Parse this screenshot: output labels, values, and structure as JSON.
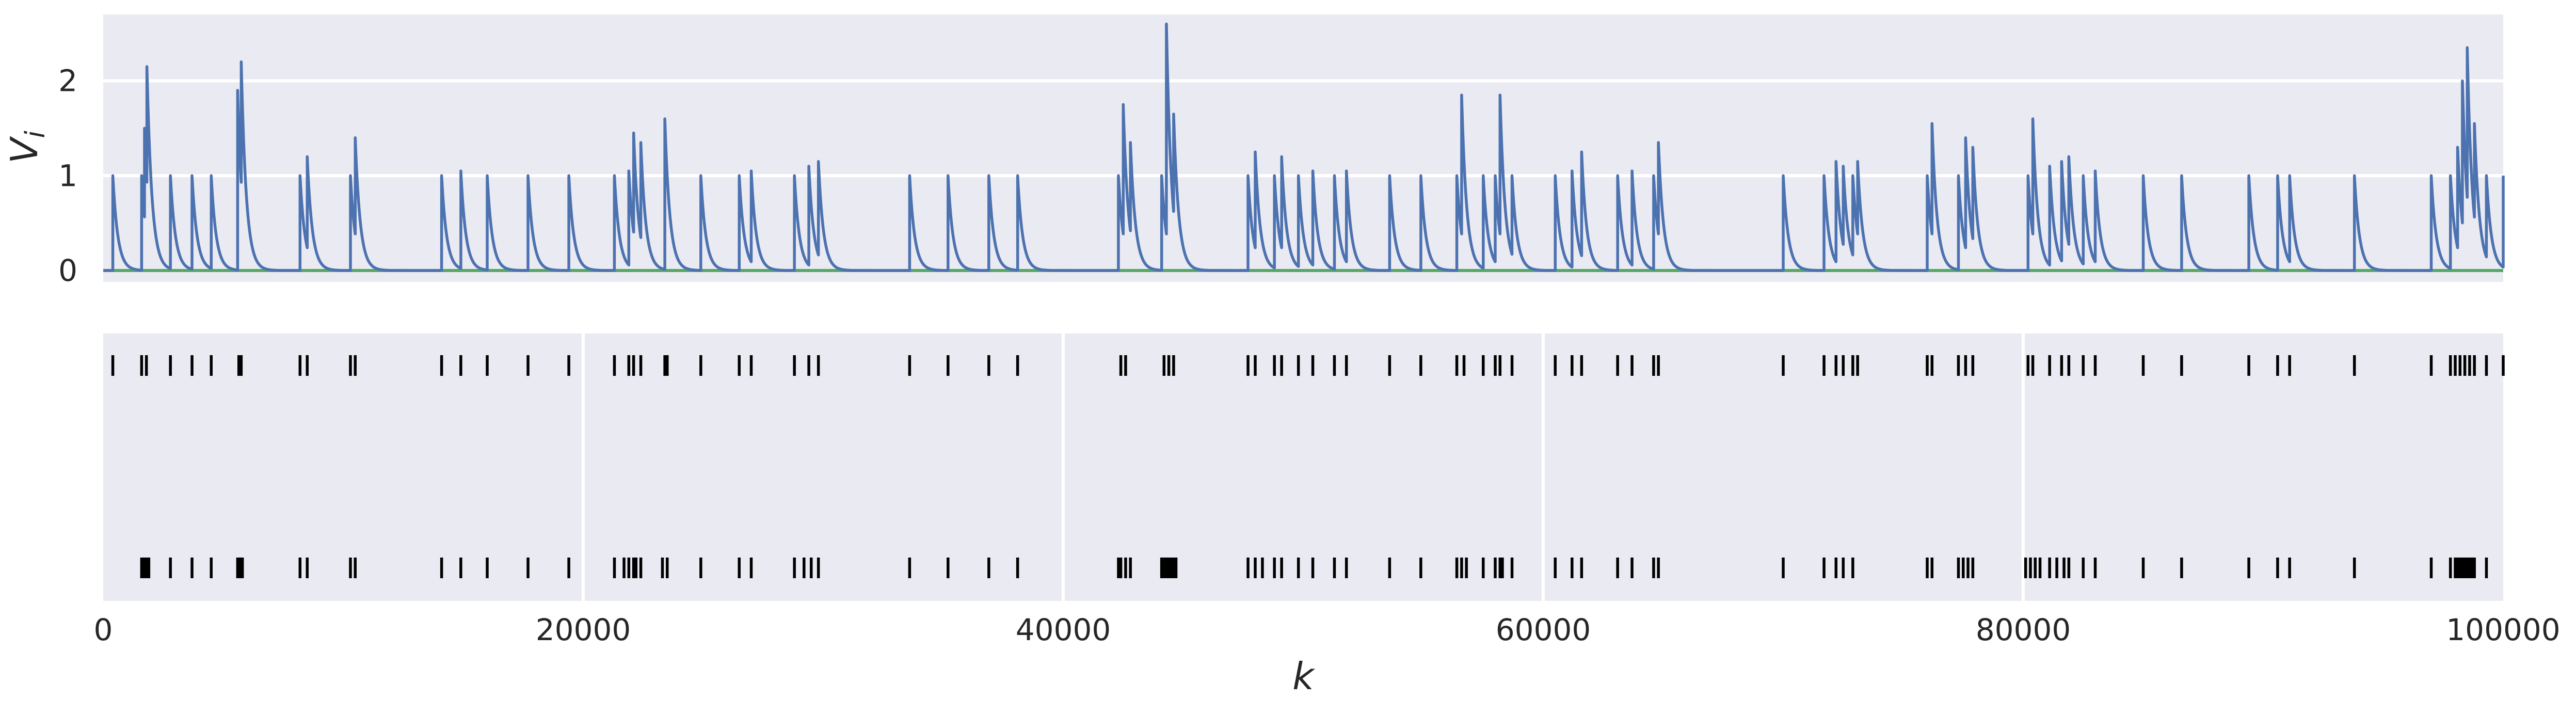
{
  "chart_data": [
    {
      "type": "line",
      "ylabel": "V",
      "ylabel_subscript": "i",
      "xlim": [
        0,
        100000
      ],
      "ylim": [
        -0.12,
        2.7
      ],
      "yticks": [
        "0",
        "1",
        "2"
      ],
      "ytick_values": [
        0,
        1,
        2
      ],
      "grid": true,
      "colors": {
        "trace": "#4c72b0",
        "baseline": "#55a868",
        "background": "#eaeaf2"
      },
      "baseline_value": 0,
      "events": [
        [
          400,
          1.0
        ],
        [
          1600,
          1.0
        ],
        [
          1720,
          1.5
        ],
        [
          1820,
          2.15
        ],
        [
          2800,
          1.0
        ],
        [
          3700,
          1.0
        ],
        [
          4500,
          1.0
        ],
        [
          5600,
          1.9
        ],
        [
          5750,
          2.2
        ],
        [
          8200,
          1.0
        ],
        [
          8500,
          1.2
        ],
        [
          10300,
          1.0
        ],
        [
          10500,
          1.4
        ],
        [
          14100,
          1.0
        ],
        [
          14900,
          1.05
        ],
        [
          16000,
          1.0
        ],
        [
          17700,
          1.0
        ],
        [
          19400,
          1.0
        ],
        [
          21300,
          1.0
        ],
        [
          21900,
          1.05
        ],
        [
          22100,
          1.45
        ],
        [
          22400,
          1.35
        ],
        [
          23400,
          1.6
        ],
        [
          24900,
          1.0
        ],
        [
          26500,
          1.0
        ],
        [
          27000,
          1.05
        ],
        [
          28800,
          1.0
        ],
        [
          29400,
          1.1
        ],
        [
          29800,
          1.15
        ],
        [
          33600,
          1.0
        ],
        [
          35200,
          1.0
        ],
        [
          36900,
          1.0
        ],
        [
          38100,
          1.0
        ],
        [
          42300,
          1.0
        ],
        [
          42500,
          1.75
        ],
        [
          42800,
          1.35
        ],
        [
          44100,
          1.0
        ],
        [
          44300,
          2.6
        ],
        [
          44600,
          1.65
        ],
        [
          47700,
          1.0
        ],
        [
          48000,
          1.25
        ],
        [
          48800,
          1.0
        ],
        [
          49100,
          1.2
        ],
        [
          49800,
          1.0
        ],
        [
          50400,
          1.05
        ],
        [
          51300,
          1.0
        ],
        [
          51800,
          1.05
        ],
        [
          53600,
          1.0
        ],
        [
          54900,
          1.0
        ],
        [
          56400,
          1.0
        ],
        [
          56600,
          1.85
        ],
        [
          57500,
          1.0
        ],
        [
          58000,
          1.0
        ],
        [
          58200,
          1.85
        ],
        [
          58700,
          1.0
        ],
        [
          60500,
          1.0
        ],
        [
          61200,
          1.05
        ],
        [
          61600,
          1.25
        ],
        [
          63100,
          1.0
        ],
        [
          63700,
          1.05
        ],
        [
          64600,
          1.0
        ],
        [
          64800,
          1.35
        ],
        [
          70000,
          1.0
        ],
        [
          71700,
          1.0
        ],
        [
          72200,
          1.15
        ],
        [
          72500,
          1.1
        ],
        [
          72900,
          1.0
        ],
        [
          73100,
          1.15
        ],
        [
          76000,
          1.0
        ],
        [
          76200,
          1.55
        ],
        [
          77300,
          1.0
        ],
        [
          77600,
          1.4
        ],
        [
          77900,
          1.3
        ],
        [
          80200,
          1.0
        ],
        [
          80400,
          1.6
        ],
        [
          81100,
          1.1
        ],
        [
          81600,
          1.15
        ],
        [
          81900,
          1.2
        ],
        [
          82500,
          1.0
        ],
        [
          83000,
          1.05
        ],
        [
          85000,
          1.0
        ],
        [
          86600,
          1.0
        ],
        [
          89400,
          1.0
        ],
        [
          90600,
          1.0
        ],
        [
          91100,
          1.0
        ],
        [
          93800,
          1.0
        ],
        [
          97000,
          1.0
        ],
        [
          97800,
          1.0
        ],
        [
          98100,
          1.3
        ],
        [
          98300,
          2.0
        ],
        [
          98500,
          2.35
        ],
        [
          98800,
          1.55
        ],
        [
          99300,
          1.0
        ],
        [
          100000,
          1.0
        ]
      ]
    },
    {
      "type": "scatter",
      "xlabel": "k",
      "xlim": [
        0,
        100000
      ],
      "xticks": [
        "0",
        "20000",
        "40000",
        "60000",
        "80000",
        "100000"
      ],
      "xtick_values": [
        0,
        20000,
        40000,
        60000,
        80000,
        100000
      ],
      "grid": true,
      "colors": {
        "marker": "#000000",
        "background": "#eaeaf2"
      },
      "series": [
        {
          "values": [
            400,
            1600,
            1800,
            2800,
            3700,
            4500,
            5650,
            5750,
            8200,
            8500,
            10300,
            10500,
            14100,
            14900,
            16000,
            17700,
            19400,
            21300,
            21900,
            22100,
            22400,
            23400,
            23500,
            24900,
            26500,
            27000,
            28800,
            29400,
            29800,
            33600,
            35200,
            36900,
            38100,
            42400,
            42600,
            44200,
            44400,
            44600,
            47700,
            48000,
            48800,
            49100,
            49800,
            50400,
            51300,
            51800,
            53600,
            54900,
            56400,
            56700,
            57500,
            58000,
            58200,
            58700,
            60500,
            61200,
            61600,
            63100,
            63700,
            64600,
            64800,
            70000,
            71700,
            72200,
            72500,
            72900,
            73100,
            76000,
            76200,
            77300,
            77600,
            77900,
            80200,
            80400,
            81100,
            81600,
            81900,
            82500,
            83000,
            85000,
            86600,
            89400,
            90600,
            91100,
            93800,
            97000,
            97800,
            98000,
            98200,
            98400,
            98600,
            98800,
            99300,
            100000
          ]
        },
        {
          "values": [
            1600,
            1700,
            1800,
            1900,
            2800,
            3700,
            4500,
            5600,
            5700,
            5800,
            8200,
            8500,
            10300,
            10500,
            14100,
            14900,
            16000,
            17700,
            19400,
            21300,
            21700,
            21900,
            22100,
            22200,
            22400,
            23300,
            23500,
            24900,
            26500,
            27000,
            28800,
            29200,
            29500,
            29800,
            33600,
            35200,
            36900,
            38100,
            42300,
            42400,
            42600,
            42800,
            44100,
            44200,
            44300,
            44400,
            44500,
            44600,
            44700,
            47700,
            48000,
            48300,
            48800,
            49100,
            49800,
            50400,
            51300,
            51800,
            53600,
            54900,
            56400,
            56600,
            56800,
            57500,
            58000,
            58200,
            58300,
            58700,
            60500,
            61200,
            61600,
            63100,
            63700,
            64600,
            64800,
            70000,
            71700,
            72200,
            72500,
            72900,
            76000,
            76200,
            77300,
            77500,
            77700,
            77900,
            80100,
            80300,
            80500,
            80700,
            81100,
            81400,
            81700,
            81900,
            82500,
            83000,
            85000,
            86600,
            89400,
            90600,
            91100,
            93800,
            97000,
            97800,
            98000,
            98100,
            98200,
            98300,
            98400,
            98500,
            98600,
            98700,
            98800,
            99300
          ]
        }
      ]
    }
  ]
}
